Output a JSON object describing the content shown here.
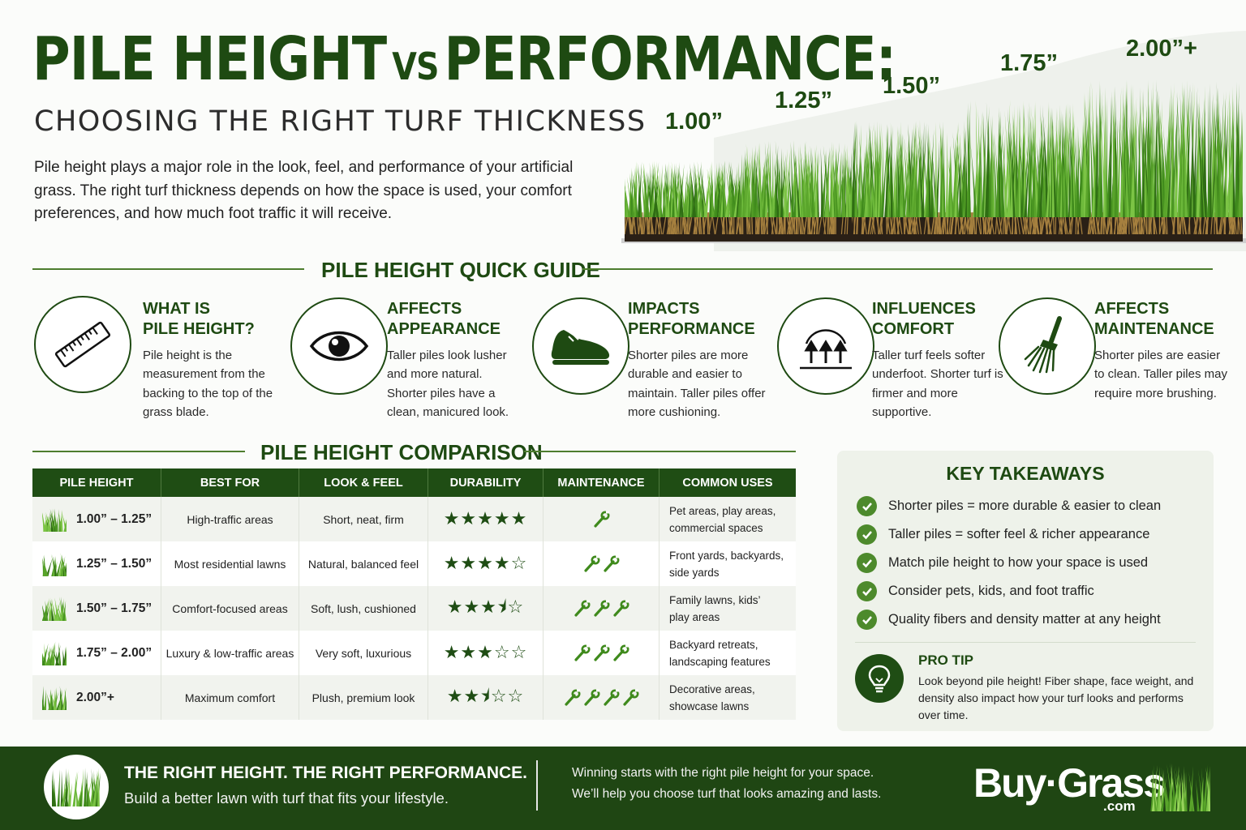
{
  "header": {
    "title_part1": "PILE HEIGHT",
    "title_vs": "VS",
    "title_part2": "PERFORMANCE:",
    "subtitle": "CHOOSING THE RIGHT TURF THICKNESS",
    "intro": "Pile height plays a major role in the look, feel, and performance of your artificial grass. The right turf thickness depends on how the space is used, your comfort preferences, and how much foot traffic it will receive."
  },
  "samples": [
    "1.00”",
    "1.25”",
    "1.50”",
    "1.75”",
    "2.00”+"
  ],
  "quick_guide": {
    "title": "PILE HEIGHT QUICK GUIDE",
    "items": [
      {
        "icon": "ruler-icon",
        "title_line1": "WHAT IS",
        "title_line2": "PILE HEIGHT?",
        "body": "Pile height is the measurement from the backing to the top of the grass blade."
      },
      {
        "icon": "eye-icon",
        "title_line1": "AFFECTS",
        "title_line2": "APPEARANCE",
        "body": "Taller piles look lusher and more natural. Shorter piles have a clean, manicured look."
      },
      {
        "icon": "shoe-icon",
        "title_line1": "IMPACTS",
        "title_line2": "PERFORMANCE",
        "body": "Shorter piles are more durable and easier to maintain. Taller piles offer more cushioning."
      },
      {
        "icon": "comfort-arrows-icon",
        "title_line1": "INFLUENCES",
        "title_line2": "COMFORT",
        "body": "Taller turf feels softer underfoot. Shorter turf is firmer and more supportive."
      },
      {
        "icon": "broom-icon",
        "title_line1": "AFFECTS",
        "title_line2": "MAINTENANCE",
        "body": "Shorter piles are easier to clean. Taller piles may require more brushing."
      }
    ]
  },
  "comparison": {
    "title": "PILE HEIGHT COMPARISON",
    "headers": [
      "PILE HEIGHT",
      "BEST FOR",
      "LOOK & FEEL",
      "DURABILITY",
      "MAINTENANCE",
      "COMMON USES"
    ],
    "rows": [
      {
        "height": "1.00” – 1.25”",
        "best_for": "High-traffic areas",
        "look": "Short, neat, firm",
        "durability_stars": 5,
        "durability": "★★★★★",
        "maintenance_wrenches": 1,
        "uses_line1": "Pet areas, play areas,",
        "uses_line2": "commercial spaces"
      },
      {
        "height": "1.25” – 1.50”",
        "best_for": "Most residential lawns",
        "look": "Natural, balanced feel",
        "durability_stars": 4,
        "durability": "★★★★☆",
        "maintenance_wrenches": 2,
        "uses_line1": "Front yards, backyards,",
        "uses_line2": "side yards"
      },
      {
        "height": "1.50” – 1.75”",
        "best_for": "Comfort-focused areas",
        "look": "Soft, lush, cushioned",
        "durability_stars": 3.5,
        "durability": "★★★⯨☆",
        "maintenance_wrenches": 3,
        "uses_line1": "Family lawns, kids’",
        "uses_line2": "play areas"
      },
      {
        "height": "1.75” – 2.00”",
        "best_for": "Luxury & low-traffic areas",
        "look": "Very soft, luxurious",
        "durability_stars": 3,
        "durability": "★★★☆☆",
        "maintenance_wrenches": 3,
        "uses_line1": "Backyard retreats,",
        "uses_line2": "landscaping features"
      },
      {
        "height": "2.00”+",
        "best_for": "Maximum comfort",
        "look": "Plush, premium look",
        "durability_stars": 2.5,
        "durability": "★★⯨☆☆",
        "maintenance_wrenches": 4,
        "uses_line1": "Decorative areas,",
        "uses_line2": "showcase lawns"
      }
    ]
  },
  "takeaways": {
    "title": "KEY TAKEAWAYS",
    "items": [
      "Shorter piles = more durable & easier to clean",
      "Taller piles = softer feel & richer appearance",
      "Match pile height to how your space is used",
      "Consider pets, kids, and foot traffic",
      "Quality fibers and density matter at any height"
    ],
    "pro_tip_title": "PRO TIP",
    "pro_tip_body": "Look beyond pile height! Fiber shape, face weight, and density also impact how your turf looks and performs over time."
  },
  "footer": {
    "headline": "THE RIGHT HEIGHT. THE RIGHT PERFORMANCE.",
    "subline": "Build a better lawn with turf that fits your lifestyle.",
    "right_line1": "Winning starts with the right pile height for your space.",
    "right_line2": "We’ll help you choose turf that looks amazing and lasts.",
    "logo_main": "Buy·Grass",
    "logo_suffix": ".com"
  },
  "colors": {
    "brand_dark_green": "#1e4a12",
    "table_header": "#1f4d14",
    "check_green": "#4d8a2c",
    "panel_bg": "#eef2ea"
  }
}
